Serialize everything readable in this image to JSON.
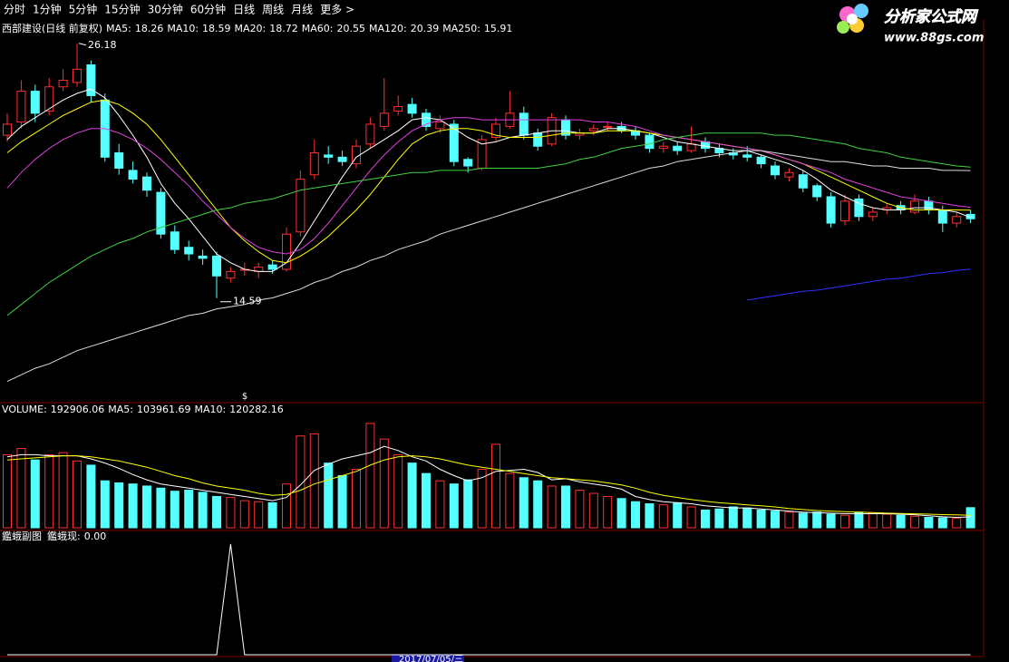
{
  "toolbar": {
    "items": [
      "分时",
      "1分钟",
      "5分钟",
      "15分钟",
      "30分钟",
      "60分钟",
      "日线",
      "周线",
      "月线",
      "更多 >"
    ],
    "active": 6
  },
  "logo": {
    "name": "分析家公式网",
    "url": "www.88gs.com"
  },
  "footer": {
    "date": "2017/07/05/三"
  },
  "marker": "$",
  "chart_data": [
    {
      "type": "candlestick",
      "title": "西部建设(日线 前复权)",
      "up_color": "#ff3030",
      "down_color": "#54ffff",
      "ylim": [
        10,
        26.5
      ],
      "open": [
        22.0,
        22.6,
        24.0,
        23.1,
        24.2,
        24.4,
        25.2,
        23.6,
        21.2,
        20.4,
        20.1,
        19.4,
        17.6,
        16.9,
        16.5,
        16.5,
        15.5,
        15.9,
        15.8,
        16.1,
        15.9,
        17.6,
        20.2,
        21.1,
        21.0,
        20.7,
        21.6,
        22.4,
        23.1,
        23.4,
        23.0,
        22.3,
        22.5,
        20.9,
        20.5,
        21.9,
        22.4,
        23.0,
        22.1,
        21.6,
        22.7,
        22.0,
        22.2,
        22.4,
        22.4,
        22.2,
        22.0,
        21.4,
        21.5,
        21.3,
        21.7,
        21.4,
        21.2,
        21.1,
        21.0,
        20.6,
        20.1,
        20.2,
        19.7,
        19.2,
        18.1,
        19.1,
        18.3,
        18.6,
        18.8,
        18.5,
        19.0,
        18.6,
        18.0,
        18.4
      ],
      "high": [
        23.0,
        24.5,
        24.3,
        24.6,
        25.0,
        26.18,
        25.4,
        23.9,
        21.6,
        20.8,
        20.3,
        19.6,
        17.9,
        17.2,
        16.8,
        16.7,
        16.0,
        16.2,
        16.2,
        16.3,
        17.8,
        20.4,
        21.8,
        21.5,
        21.3,
        21.8,
        22.8,
        24.6,
        23.8,
        23.7,
        23.2,
        22.9,
        22.7,
        21.0,
        22.0,
        22.8,
        24.0,
        23.3,
        22.3,
        23.0,
        22.9,
        22.3,
        22.5,
        22.6,
        22.6,
        22.4,
        22.1,
        21.7,
        21.7,
        22.4,
        21.9,
        21.6,
        21.4,
        21.5,
        21.1,
        20.8,
        20.5,
        20.4,
        19.8,
        19.4,
        19.3,
        19.3,
        18.7,
        18.9,
        19.0,
        19.3,
        19.2,
        18.8,
        18.5,
        18.6
      ],
      "low": [
        21.7,
        22.3,
        22.6,
        22.9,
        24.0,
        24.2,
        23.5,
        20.8,
        20.2,
        19.8,
        19.2,
        17.3,
        16.6,
        16.3,
        16.1,
        14.59,
        15.3,
        15.6,
        15.5,
        15.7,
        15.8,
        17.4,
        20.0,
        20.7,
        20.6,
        20.5,
        21.4,
        22.2,
        22.9,
        22.8,
        22.2,
        22.1,
        20.6,
        20.3,
        20.4,
        21.7,
        22.3,
        21.8,
        21.3,
        21.5,
        21.8,
        21.8,
        22.0,
        22.2,
        22.1,
        21.8,
        21.2,
        21.2,
        21.1,
        21.2,
        21.2,
        21.0,
        20.9,
        20.8,
        20.5,
        20.0,
        19.9,
        19.4,
        19.0,
        17.8,
        17.9,
        18.1,
        18.1,
        18.4,
        18.4,
        18.4,
        18.4,
        17.6,
        17.8,
        18.0
      ],
      "close": [
        22.5,
        24.0,
        23.0,
        24.2,
        24.5,
        25.0,
        23.8,
        21.0,
        20.5,
        20.0,
        19.5,
        17.5,
        16.8,
        16.6,
        16.4,
        15.6,
        15.8,
        15.9,
        16.0,
        15.9,
        17.5,
        20.0,
        21.2,
        21.0,
        20.8,
        21.5,
        22.5,
        23.0,
        23.3,
        23.0,
        22.4,
        22.6,
        20.8,
        20.6,
        21.8,
        22.5,
        23.0,
        22.0,
        21.5,
        22.8,
        22.0,
        22.1,
        22.3,
        22.4,
        22.2,
        22.0,
        21.4,
        21.5,
        21.3,
        21.6,
        21.4,
        21.2,
        21.1,
        21.0,
        20.7,
        20.2,
        20.3,
        19.6,
        19.2,
        18.0,
        19.0,
        18.3,
        18.5,
        18.7,
        18.6,
        19.0,
        18.6,
        18.0,
        18.3,
        18.2
      ],
      "series": [
        {
          "name": "MA5:",
          "color": "#ffffff",
          "values": [
            21.8,
            22.4,
            22.8,
            23.2,
            23.6,
            23.9,
            24.1,
            23.7,
            22.9,
            22.0,
            21.0,
            19.8,
            18.9,
            18.2,
            17.4,
            16.6,
            16.2,
            15.9,
            15.8,
            15.8,
            16.2,
            17.1,
            18.1,
            19.1,
            20.1,
            21.0,
            21.4,
            21.8,
            22.2,
            22.7,
            22.8,
            22.7,
            22.3,
            21.9,
            21.6,
            21.7,
            21.9,
            22.0,
            22.1,
            22.2,
            22.2,
            22.1,
            22.1,
            22.3,
            22.3,
            22.2,
            22.1,
            21.9,
            21.7,
            21.6,
            21.5,
            21.4,
            21.3,
            21.3,
            21.1,
            20.9,
            20.7,
            20.4,
            20.0,
            19.5,
            19.2,
            18.9,
            18.7,
            18.6,
            18.6,
            18.7,
            18.7,
            18.6,
            18.5,
            18.26
          ]
        },
        {
          "name": "MA10:",
          "color": "#ffff00",
          "values": [
            21.2,
            21.7,
            22.1,
            22.5,
            22.9,
            23.2,
            23.5,
            23.6,
            23.4,
            23.0,
            22.5,
            21.8,
            21.0,
            20.2,
            19.4,
            18.6,
            17.8,
            17.2,
            16.7,
            16.3,
            16.2,
            16.5,
            16.9,
            17.4,
            18.0,
            18.6,
            19.3,
            20.1,
            20.9,
            21.6,
            22.0,
            22.2,
            22.3,
            22.3,
            22.2,
            22.0,
            21.9,
            21.9,
            21.9,
            22.0,
            22.1,
            22.1,
            22.1,
            22.2,
            22.2,
            22.2,
            22.1,
            22.0,
            21.9,
            21.8,
            21.7,
            21.6,
            21.5,
            21.4,
            21.3,
            21.1,
            20.9,
            20.7,
            20.4,
            20.1,
            19.8,
            19.5,
            19.2,
            18.9,
            18.7,
            18.6,
            18.6,
            18.6,
            18.6,
            18.59
          ]
        },
        {
          "name": "MA20:",
          "color": "#e040e0",
          "values": [
            19.6,
            20.3,
            20.9,
            21.4,
            21.8,
            22.1,
            22.3,
            22.3,
            22.1,
            21.8,
            21.4,
            20.9,
            20.3,
            19.7,
            19.0,
            18.4,
            17.8,
            17.3,
            16.9,
            16.7,
            16.6,
            16.8,
            17.3,
            18.0,
            18.8,
            19.6,
            20.4,
            21.1,
            21.7,
            22.2,
            22.5,
            22.7,
            22.8,
            22.8,
            22.7,
            22.7,
            22.7,
            22.7,
            22.7,
            22.7,
            22.7,
            22.7,
            22.6,
            22.6,
            22.5,
            22.4,
            22.2,
            22.0,
            21.9,
            21.8,
            21.7,
            21.6,
            21.5,
            21.4,
            21.3,
            21.1,
            20.9,
            20.7,
            20.5,
            20.3,
            20.0,
            19.8,
            19.6,
            19.4,
            19.2,
            19.1,
            19.0,
            18.9,
            18.8,
            18.72
          ]
        },
        {
          "name": "MA60:",
          "color": "#40d040",
          "values": [
            13.8,
            14.3,
            14.8,
            15.3,
            15.7,
            16.1,
            16.5,
            16.8,
            17.1,
            17.3,
            17.6,
            17.8,
            18.0,
            18.2,
            18.4,
            18.6,
            18.7,
            18.9,
            19.0,
            19.1,
            19.3,
            19.5,
            19.6,
            19.7,
            19.8,
            19.9,
            20.0,
            20.1,
            20.2,
            20.3,
            20.3,
            20.4,
            20.4,
            20.4,
            20.5,
            20.5,
            20.5,
            20.5,
            20.5,
            20.6,
            20.7,
            20.9,
            21.0,
            21.2,
            21.4,
            21.5,
            21.6,
            21.8,
            21.9,
            22.0,
            22.1,
            22.1,
            22.1,
            22.1,
            22.1,
            22.0,
            22.0,
            21.9,
            21.8,
            21.7,
            21.6,
            21.4,
            21.3,
            21.2,
            21.0,
            20.9,
            20.8,
            20.7,
            20.6,
            20.55
          ]
        },
        {
          "name": "MA120:",
          "color": "#dddddd",
          "values": [
            10.8,
            11.1,
            11.4,
            11.6,
            11.9,
            12.2,
            12.4,
            12.6,
            12.8,
            13.0,
            13.2,
            13.4,
            13.6,
            13.8,
            13.9,
            14.1,
            14.2,
            14.3,
            14.5,
            14.6,
            14.8,
            15.0,
            15.3,
            15.5,
            15.8,
            16.0,
            16.3,
            16.5,
            16.8,
            17.0,
            17.2,
            17.5,
            17.7,
            17.9,
            18.1,
            18.3,
            18.5,
            18.7,
            18.9,
            19.1,
            19.3,
            19.5,
            19.7,
            19.9,
            20.1,
            20.3,
            20.5,
            20.6,
            20.8,
            20.9,
            21.0,
            21.1,
            21.2,
            21.3,
            21.3,
            21.2,
            21.1,
            21.0,
            20.9,
            20.8,
            20.8,
            20.7,
            20.6,
            20.6,
            20.5,
            20.5,
            20.5,
            20.4,
            20.4,
            20.39
          ]
        },
        {
          "name": "MA250:",
          "color": "#3030ff",
          "values": [
            null,
            null,
            null,
            null,
            null,
            null,
            null,
            null,
            null,
            null,
            null,
            null,
            null,
            null,
            null,
            null,
            null,
            null,
            null,
            null,
            null,
            null,
            null,
            null,
            null,
            null,
            null,
            null,
            null,
            null,
            null,
            null,
            null,
            null,
            null,
            null,
            null,
            null,
            null,
            null,
            null,
            null,
            null,
            null,
            null,
            null,
            null,
            null,
            null,
            null,
            null,
            null,
            null,
            14.5,
            14.6,
            14.7,
            14.8,
            14.9,
            14.95,
            15.05,
            15.15,
            15.25,
            15.35,
            15.45,
            15.5,
            15.6,
            15.7,
            15.75,
            15.85,
            15.91
          ]
        }
      ]
    },
    {
      "type": "volume",
      "title": "VOLUME:",
      "ylim": [
        0,
        1060000
      ],
      "values": [
        700000,
        760000,
        650000,
        700000,
        720000,
        640000,
        600000,
        450000,
        430000,
        420000,
        400000,
        380000,
        350000,
        360000,
        340000,
        300000,
        290000,
        260000,
        250000,
        240000,
        420000,
        880000,
        900000,
        620000,
        500000,
        560000,
        1000000,
        850000,
        700000,
        620000,
        520000,
        450000,
        420000,
        460000,
        560000,
        800000,
        520000,
        480000,
        450000,
        400000,
        400000,
        360000,
        330000,
        300000,
        280000,
        250000,
        230000,
        220000,
        240000,
        200000,
        170000,
        180000,
        200000,
        190000,
        170000,
        160000,
        150000,
        140000,
        150000,
        130000,
        120000,
        150000,
        140000,
        130000,
        120000,
        110000,
        100000,
        95000,
        90000,
        192906.06
      ],
      "series": [
        {
          "name": "MA5:",
          "color": "#ffffff",
          "values": [
            680000,
            700000,
            700000,
            690000,
            690000,
            690000,
            660000,
            620000,
            570000,
            510000,
            460000,
            420000,
            400000,
            380000,
            360000,
            340000,
            320000,
            300000,
            280000,
            260000,
            290000,
            410000,
            550000,
            610000,
            660000,
            690000,
            720000,
            780000,
            740000,
            680000,
            640000,
            560000,
            500000,
            450000,
            480000,
            540000,
            550000,
            560000,
            530000,
            460000,
            470000,
            440000,
            420000,
            400000,
            370000,
            300000,
            270000,
            250000,
            240000,
            230000,
            210000,
            200000,
            190000,
            190000,
            180000,
            170000,
            160000,
            150000,
            145000,
            140000,
            135000,
            135000,
            135000,
            135000,
            130000,
            125000,
            115000,
            105000,
            100000,
            103961.69
          ]
        },
        {
          "name": "MA10:",
          "color": "#ffff00",
          "values": [
            650000,
            660000,
            670000,
            680000,
            690000,
            690000,
            680000,
            660000,
            640000,
            610000,
            580000,
            540000,
            500000,
            470000,
            430000,
            400000,
            380000,
            360000,
            330000,
            310000,
            320000,
            360000,
            420000,
            460000,
            500000,
            540000,
            600000,
            650000,
            680000,
            690000,
            680000,
            660000,
            630000,
            600000,
            580000,
            560000,
            540000,
            520000,
            500000,
            480000,
            470000,
            460000,
            450000,
            430000,
            410000,
            380000,
            340000,
            310000,
            290000,
            270000,
            255000,
            240000,
            230000,
            220000,
            210000,
            200000,
            185000,
            175000,
            165000,
            160000,
            155000,
            150000,
            145000,
            140000,
            137000,
            134000,
            130000,
            126000,
            123000,
            120282.16
          ]
        }
      ]
    },
    {
      "type": "line",
      "title": "鑑蛾副图",
      "ylim": [
        0,
        1
      ],
      "current_label": "0.00",
      "series": [
        {
          "name": "鑑蛾现:",
          "color": "#ffffff",
          "values": [
            0,
            0,
            0,
            0,
            0,
            0,
            0,
            0,
            0,
            0,
            0,
            0,
            0,
            0,
            0,
            0,
            1,
            0,
            0,
            0,
            0,
            0,
            0,
            0,
            0,
            0,
            0,
            0,
            0,
            0,
            0,
            0,
            0,
            0,
            0,
            0,
            0,
            0,
            0,
            0,
            0,
            0,
            0,
            0,
            0,
            0,
            0,
            0,
            0,
            0,
            0,
            0,
            0,
            0,
            0,
            0,
            0,
            0,
            0,
            0,
            0,
            0,
            0,
            0,
            0,
            0,
            0,
            0,
            0,
            0
          ]
        }
      ]
    }
  ]
}
